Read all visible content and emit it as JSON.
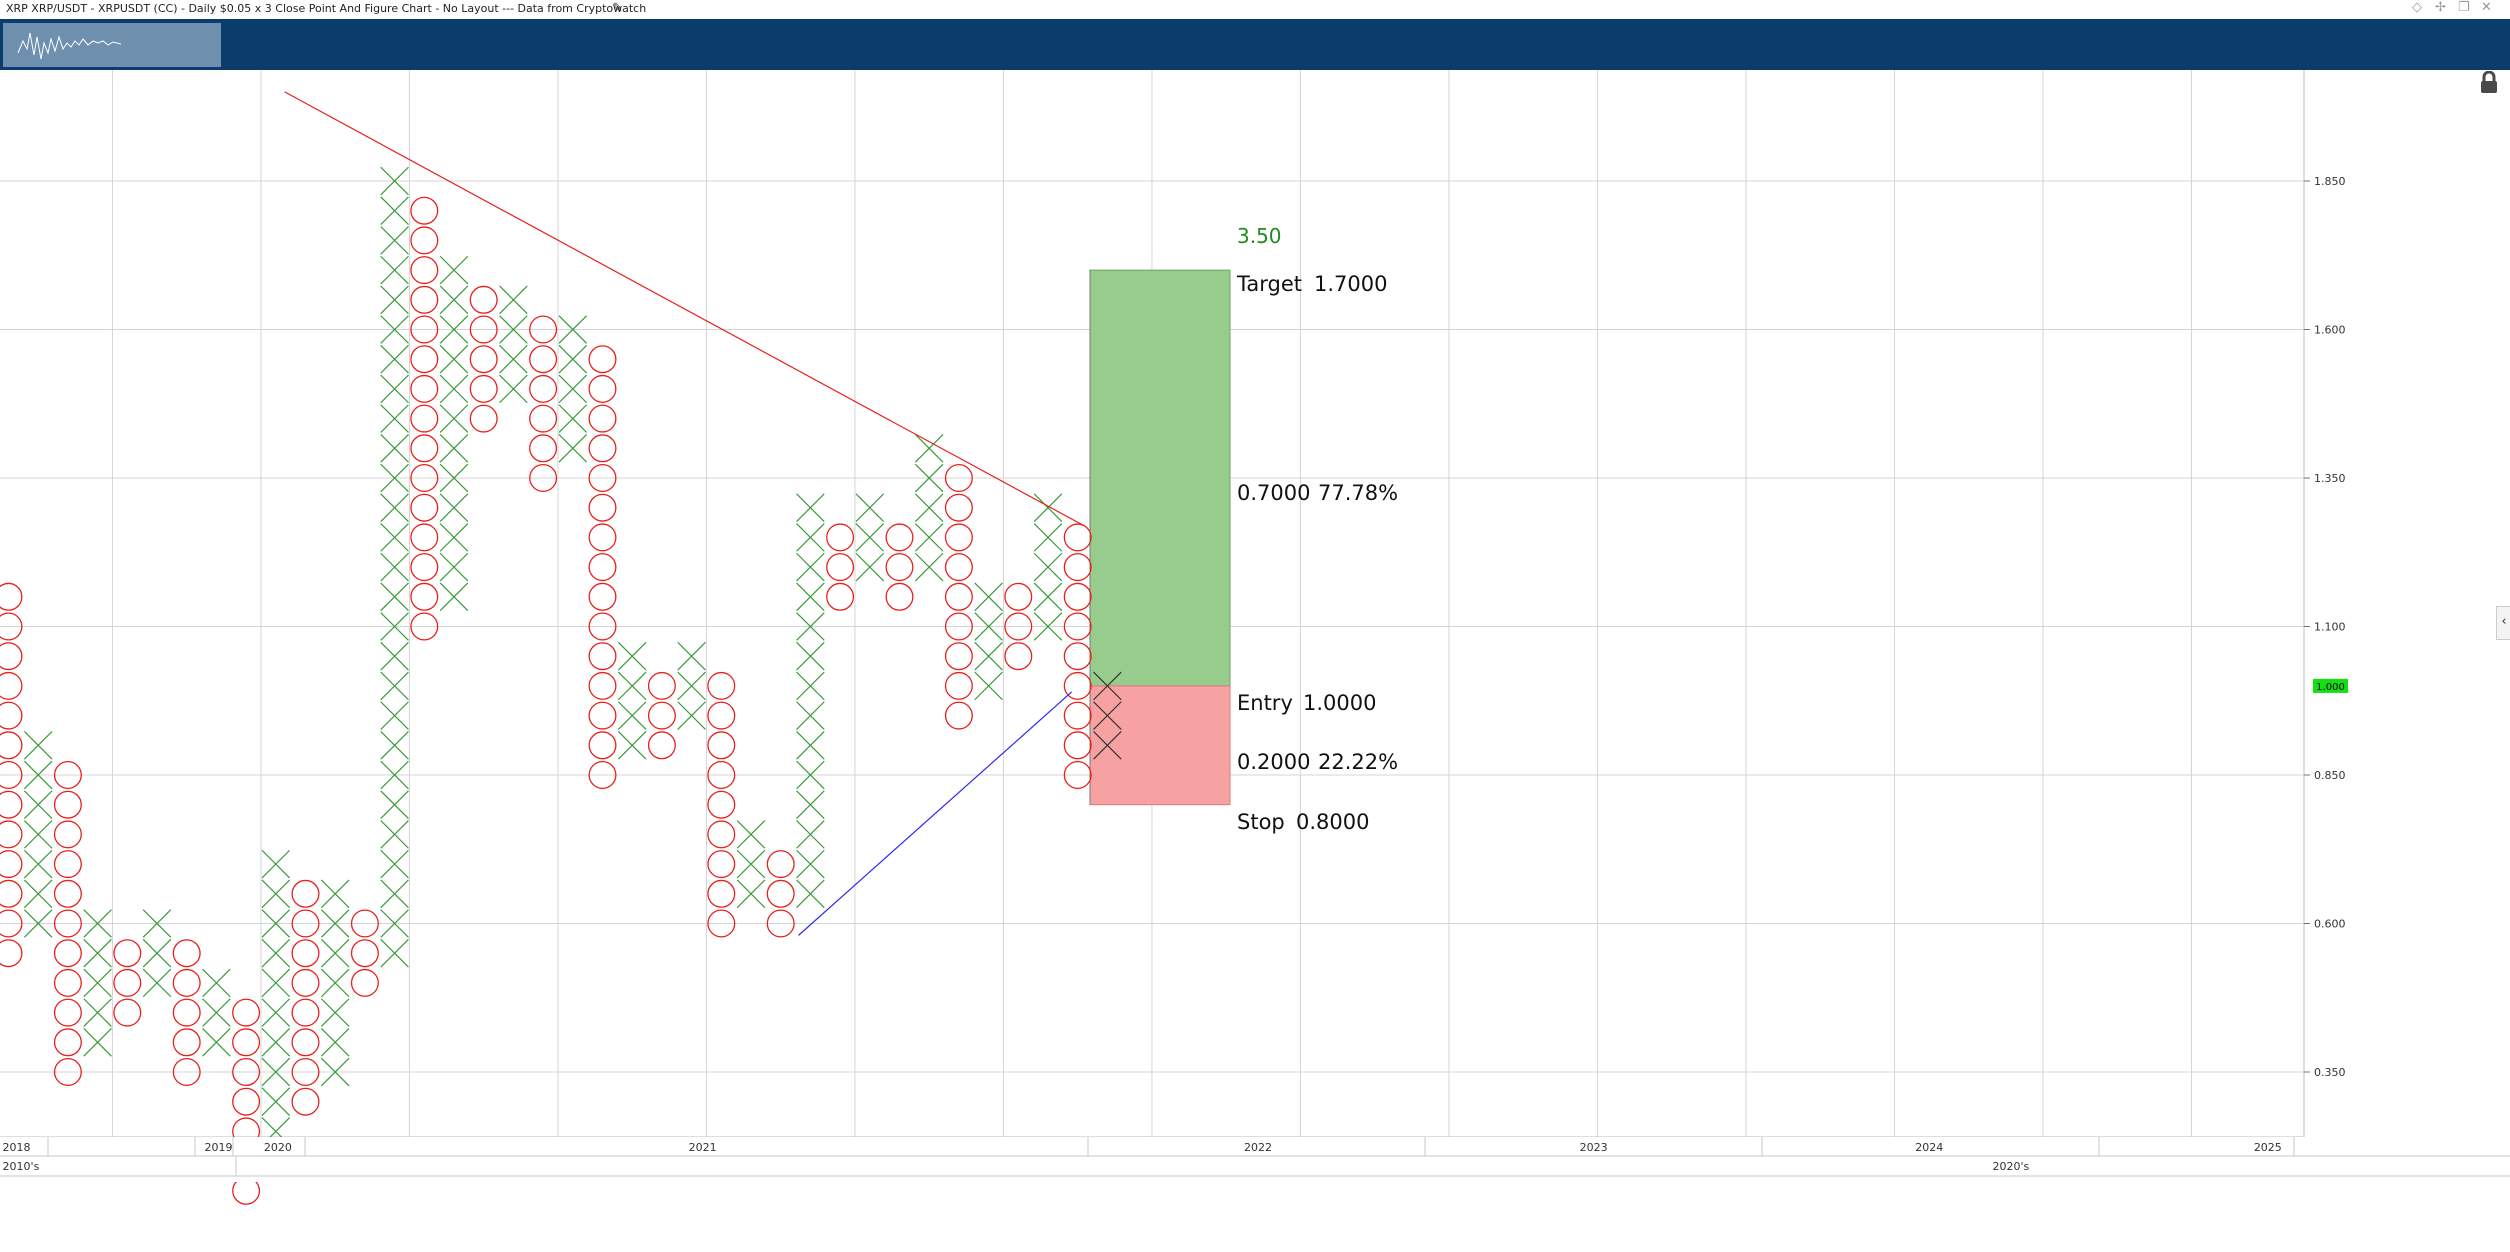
{
  "window": {
    "title": "XRP XRP/USDT - XRPUSDT (CC) - Daily $0.05 x 3 Close Point And Figure Chart - No Layout --- Data from Cryptowatch",
    "controls": [
      "diamond-icon",
      "pin-icon",
      "restore-icon",
      "close-icon"
    ]
  },
  "icons": {
    "edit": "pencil-icon",
    "lock": "lock-icon",
    "collapse": "chevron-left-icon"
  },
  "colors": {
    "x_mark": "#3a9a3a",
    "o_mark": "#e8201c",
    "trend_down": "#e8201c",
    "trend_up": "#2b2bf0",
    "target_zone": "#97cc8d",
    "stop_zone": "#f7a2a2",
    "navbar": "#0a3d6b",
    "price_badge": "#11e011"
  },
  "chart_data": {
    "type": "point-and-figure",
    "box_size": 0.05,
    "reversal": 3,
    "price_axis": {
      "min": 0.2,
      "max": 2.0,
      "ticks": [
        1.85,
        1.6,
        1.35,
        1.1,
        0.85,
        0.6,
        0.35
      ],
      "tick_labels": [
        "1.850",
        "1.600",
        "1.350",
        "1.100",
        "0.850",
        "0.600",
        "0.350"
      ]
    },
    "current_price": {
      "value": 1.0,
      "label": "1.000"
    },
    "columns": [
      {
        "type": "O",
        "high": 1.15,
        "low": 0.55
      },
      {
        "type": "X",
        "low": 0.6,
        "high": 0.9
      },
      {
        "type": "O",
        "high": 0.85,
        "low": 0.35
      },
      {
        "type": "X",
        "low": 0.4,
        "high": 0.6
      },
      {
        "type": "O",
        "high": 0.55,
        "low": 0.45
      },
      {
        "type": "X",
        "low": 0.5,
        "high": 0.6
      },
      {
        "type": "O",
        "high": 0.55,
        "low": 0.35
      },
      {
        "type": "X",
        "low": 0.4,
        "high": 0.5
      },
      {
        "type": "O",
        "high": 0.45,
        "low": 0.15
      },
      {
        "type": "X",
        "low": 0.2,
        "high": 0.7
      },
      {
        "type": "O",
        "high": 0.65,
        "low": 0.3
      },
      {
        "type": "X",
        "low": 0.35,
        "high": 0.65
      },
      {
        "type": "O",
        "high": 0.6,
        "low": 0.5
      },
      {
        "type": "X",
        "low": 0.55,
        "high": 1.85
      },
      {
        "type": "O",
        "high": 1.8,
        "low": 1.1
      },
      {
        "type": "X",
        "low": 1.15,
        "high": 1.7
      },
      {
        "type": "O",
        "high": 1.65,
        "low": 1.45
      },
      {
        "type": "X",
        "low": 1.5,
        "high": 1.65
      },
      {
        "type": "O",
        "high": 1.6,
        "low": 1.35
      },
      {
        "type": "X",
        "low": 1.4,
        "high": 1.6
      },
      {
        "type": "O",
        "high": 1.55,
        "low": 0.85
      },
      {
        "type": "X",
        "low": 0.9,
        "high": 1.05
      },
      {
        "type": "O",
        "high": 1.0,
        "low": 0.9
      },
      {
        "type": "X",
        "low": 0.95,
        "high": 1.05
      },
      {
        "type": "O",
        "high": 1.0,
        "low": 0.6
      },
      {
        "type": "X",
        "low": 0.65,
        "high": 0.75
      },
      {
        "type": "O",
        "high": 0.7,
        "low": 0.6
      },
      {
        "type": "X",
        "low": 0.65,
        "high": 1.3
      },
      {
        "type": "O",
        "high": 1.25,
        "low": 1.15
      },
      {
        "type": "X",
        "low": 1.2,
        "high": 1.3
      },
      {
        "type": "O",
        "high": 1.25,
        "low": 1.15
      },
      {
        "type": "X",
        "low": 1.2,
        "high": 1.4
      },
      {
        "type": "O",
        "high": 1.35,
        "low": 0.95
      },
      {
        "type": "X",
        "low": 1.0,
        "high": 1.15
      },
      {
        "type": "O",
        "high": 1.15,
        "low": 1.05
      },
      {
        "type": "X",
        "low": 1.1,
        "high": 1.3
      },
      {
        "type": "O",
        "high": 1.25,
        "low": 0.85
      },
      {
        "type": "X",
        "low": 0.9,
        "high": 1.0
      }
    ],
    "trendlines": [
      {
        "name": "resistance",
        "from": {
          "col": 9.3,
          "price": 2.0
        },
        "to": {
          "col": 36.2,
          "price": 1.27
        }
      },
      {
        "name": "support",
        "from": {
          "col": 26.6,
          "price": 0.58
        },
        "to": {
          "col": 35.8,
          "price": 0.99
        }
      }
    ],
    "position": {
      "ratio_label": "3.50",
      "target": {
        "label": "Target",
        "value": "1.7000",
        "price": 1.7
      },
      "reward": {
        "amount": "0.7000",
        "percent": "77.78%"
      },
      "entry": {
        "label": "Entry",
        "value": "1.0000",
        "price": 1.0
      },
      "risk": {
        "amount": "0.2000",
        "percent": "22.22%"
      },
      "stop": {
        "label": "Stop",
        "value": "0.8000",
        "price": 0.8
      }
    },
    "time_axis": {
      "upper_labels": [
        {
          "text": "2018",
          "col": -0.2
        },
        {
          "text": "2019",
          "col": 6.6
        },
        {
          "text": "2020",
          "col": 8.6
        },
        {
          "text": "2021",
          "col": 22.9
        },
        {
          "text": "2022",
          "col": 41.6
        },
        {
          "text": "2023",
          "col": 52.9
        },
        {
          "text": "2024",
          "col": 64.2
        },
        {
          "text": "2025",
          "col": 75.6
        }
      ],
      "lower_labels": [
        {
          "text": "2010's",
          "col": -0.2
        },
        {
          "text": "2020's",
          "col": 66.8
        }
      ]
    }
  }
}
